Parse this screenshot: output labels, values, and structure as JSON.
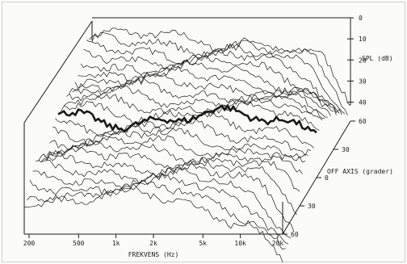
{
  "chart_data": {
    "type": "waterfall",
    "title": "",
    "xlabel": "FREKVENS (Hz)",
    "ylabel": "SPL (dB)",
    "zlabel": "OFF AXIS (grader)",
    "x_ticks": [
      "200",
      "500",
      "1k",
      "2k",
      "5k",
      "10k",
      "20k"
    ],
    "x_values_hz": [
      200,
      500,
      1000,
      2000,
      5000,
      10000,
      20000
    ],
    "xlim_hz": [
      200,
      20000
    ],
    "y_ticks": [
      "0",
      "10",
      "20",
      "30",
      "40"
    ],
    "ylim_db": [
      0,
      40
    ],
    "z_ticks_back": [
      "60",
      "30"
    ],
    "z_tick_center": "0",
    "z_ticks_front": [
      "30",
      "60"
    ],
    "zlim_deg": [
      -60,
      60
    ],
    "curve_count": 25,
    "highlighted_curve_angle": 0,
    "grid": false,
    "colors": {
      "ink": "#1a1a1a",
      "paper": "#fbfbf9"
    }
  }
}
